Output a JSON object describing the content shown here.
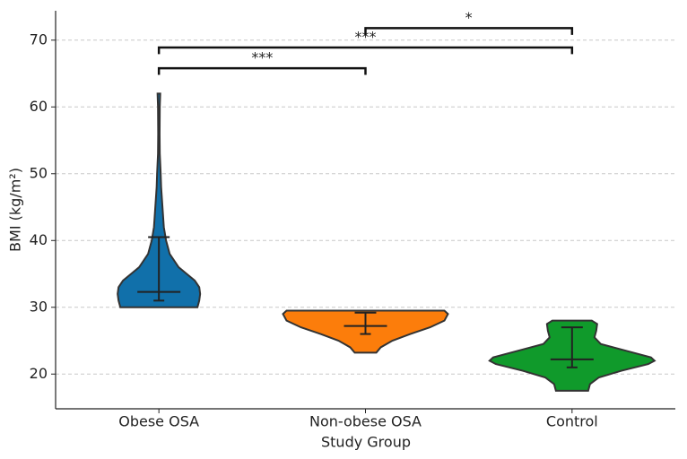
{
  "chart_data": {
    "type": "violin",
    "xlabel": "Study Group",
    "ylabel": "BMI (kg/m²)",
    "categories": [
      "Obese OSA",
      "Non-obese OSA",
      "Control"
    ],
    "ylim": [
      14.8,
      74.4
    ],
    "yticks": [
      20,
      30,
      40,
      50,
      60,
      70
    ],
    "grid": true,
    "series": [
      {
        "name": "Obese OSA",
        "color": "#1170aa",
        "min": 30,
        "max": 62,
        "median": 32.3,
        "q1": 31,
        "q3": 40.5,
        "density_y": [
          30,
          31,
          32,
          33,
          34,
          35,
          36,
          38,
          40,
          42,
          45,
          48,
          50,
          53,
          56,
          60,
          62
        ],
        "density": [
          0.43,
          0.45,
          0.46,
          0.45,
          0.4,
          0.31,
          0.22,
          0.12,
          0.08,
          0.055,
          0.04,
          0.025,
          0.02,
          0.01,
          0.008,
          0.01,
          0.015
        ]
      },
      {
        "name": "Non-obese OSA",
        "color": "#fc7d0b",
        "min": 23.2,
        "max": 29.5,
        "median": 27.2,
        "q1": 26,
        "q3": 29.2,
        "density_y": [
          23.2,
          24,
          25,
          26,
          27,
          28,
          29,
          29.5
        ],
        "density": [
          0.12,
          0.17,
          0.3,
          0.5,
          0.72,
          0.88,
          0.92,
          0.88
        ]
      },
      {
        "name": "Control",
        "color": "#109a2b",
        "min": 17.5,
        "max": 28,
        "median": 22.2,
        "q1": 21,
        "q3": 27,
        "density_y": [
          17.5,
          18.5,
          19.5,
          20.5,
          21.5,
          22,
          22.5,
          23.5,
          24.5,
          25.5,
          26.5,
          27.5,
          28
        ],
        "density": [
          0.18,
          0.2,
          0.3,
          0.55,
          0.85,
          0.92,
          0.88,
          0.6,
          0.32,
          0.25,
          0.27,
          0.28,
          0.22
        ]
      }
    ],
    "brackets": [
      {
        "from": 0,
        "to": 1,
        "y": 65.8,
        "label": "***"
      },
      {
        "from": 0,
        "to": 2,
        "y": 68.9,
        "label": "***"
      },
      {
        "from": 1,
        "to": 2,
        "y": 71.8,
        "label": "*"
      }
    ]
  }
}
